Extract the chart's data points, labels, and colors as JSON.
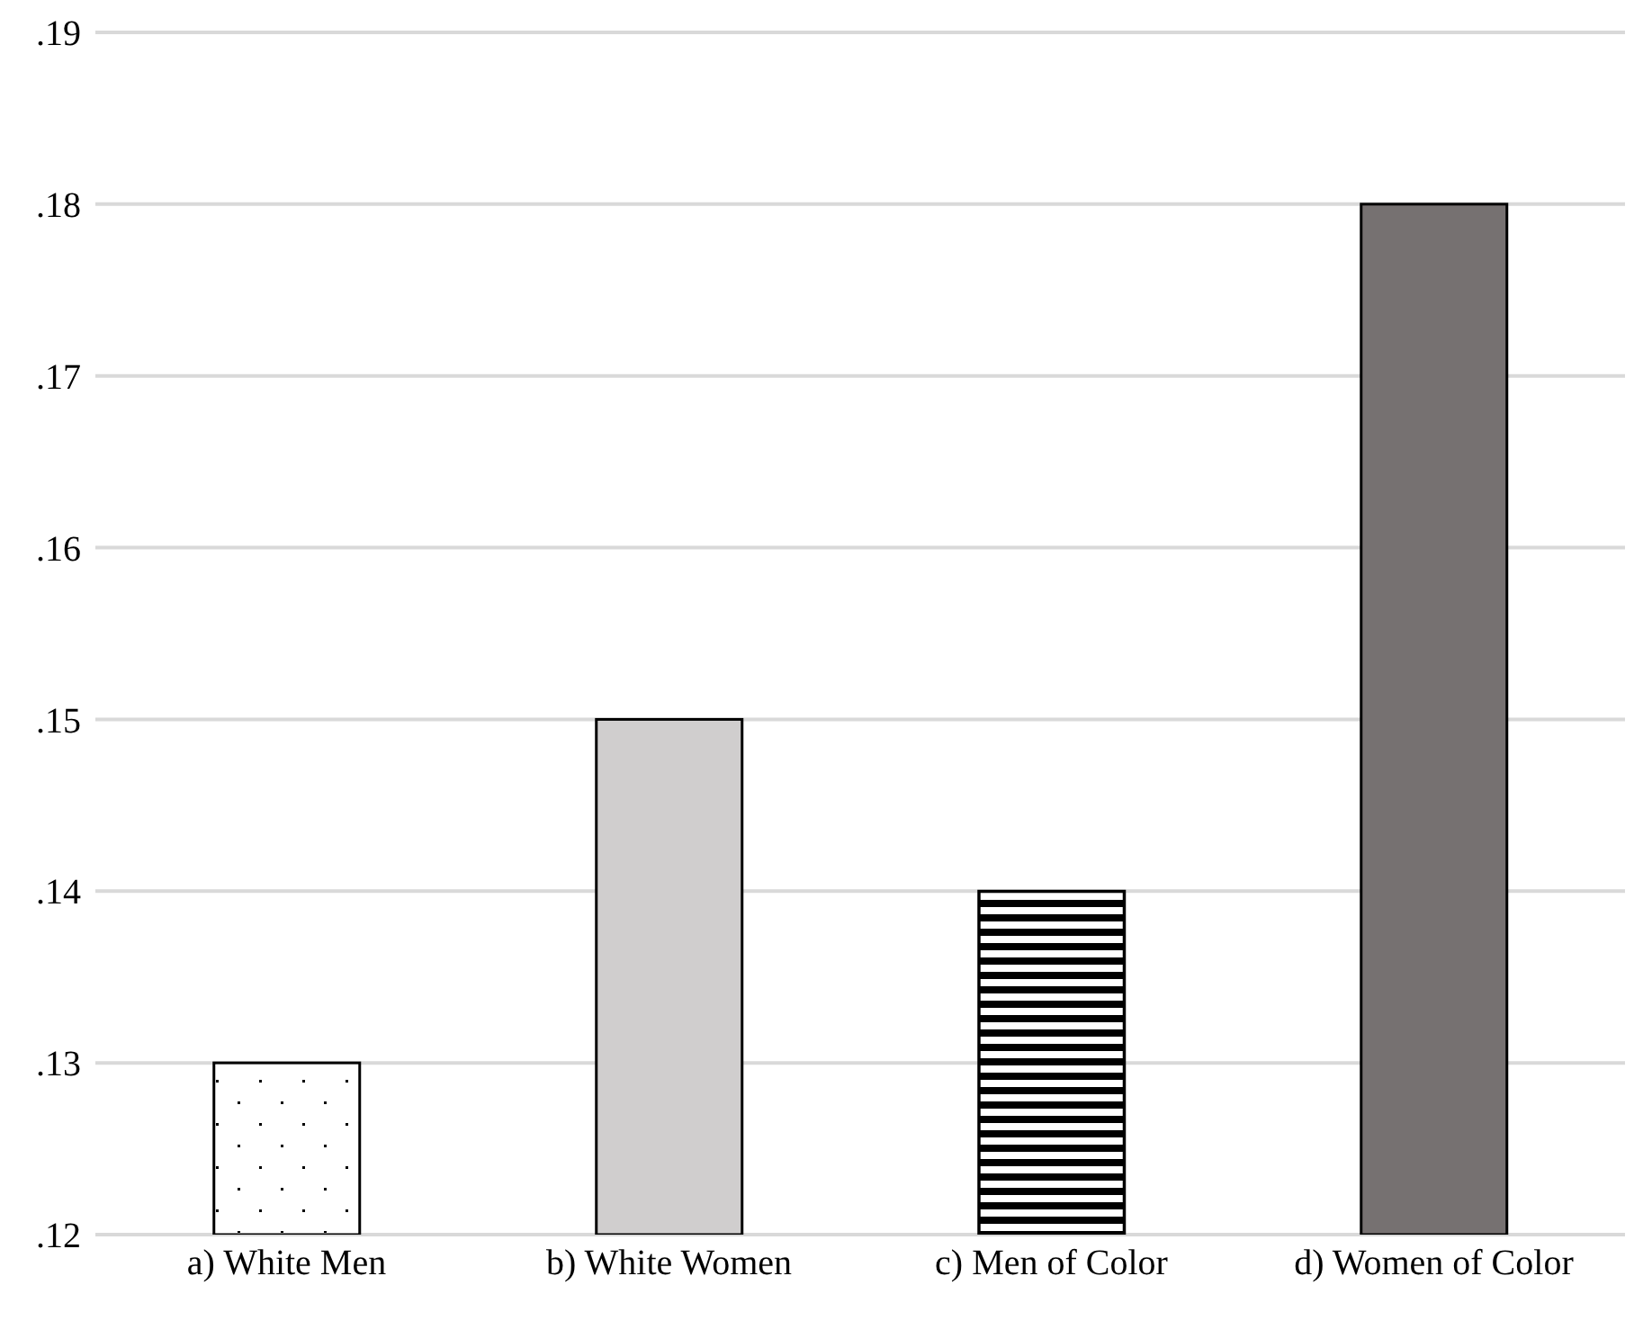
{
  "chart_data": {
    "type": "bar",
    "categories": [
      "a) White Men",
      "b) White Women",
      "c) Men of Color",
      "d) Women of Color"
    ],
    "values": [
      0.13,
      0.15,
      0.14,
      0.18
    ],
    "colors": [
      "#ffffff",
      "#d0cece",
      "#000000",
      "#767171"
    ],
    "ylim": [
      0.12,
      0.19
    ],
    "yticks": [
      {
        "value": 0.12,
        "label": ".12"
      },
      {
        "value": 0.13,
        "label": ".13"
      },
      {
        "value": 0.14,
        "label": ".14"
      },
      {
        "value": 0.15,
        "label": ".15"
      },
      {
        "value": 0.16,
        "label": ".16"
      },
      {
        "value": 0.17,
        "label": ".17"
      },
      {
        "value": 0.18,
        "label": ".18"
      },
      {
        "value": 0.19,
        "label": ".19"
      }
    ],
    "grid": "y",
    "legend": false
  }
}
